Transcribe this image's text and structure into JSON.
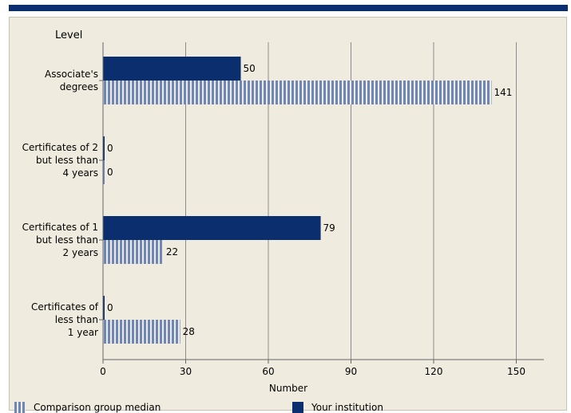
{
  "chart_data": {
    "type": "bar",
    "orientation": "horizontal",
    "ylabel": "Level",
    "xlabel": "Number",
    "categories": [
      [
        "Associate's",
        "degrees"
      ],
      [
        "Certificates of 2",
        "but less than",
        "4 years"
      ],
      [
        "Certificates of 1",
        "but less than",
        "2 years"
      ],
      [
        "Certificates of",
        "less than",
        "1 year"
      ]
    ],
    "series": [
      {
        "name": "Your institution",
        "values": [
          50,
          0,
          79,
          0
        ],
        "color": "#0b2e6e",
        "style": "solid"
      },
      {
        "name": "Comparison group median",
        "values": [
          141,
          0,
          22,
          28
        ],
        "color": "#6f86b8",
        "style": "striped"
      }
    ],
    "xlim": [
      0,
      160
    ],
    "xticks": [
      0,
      30,
      60,
      90,
      120,
      150
    ],
    "grid": true,
    "legend": "bottom"
  },
  "legend": {
    "comparison": "Comparison group median",
    "institution": "Your institution"
  }
}
